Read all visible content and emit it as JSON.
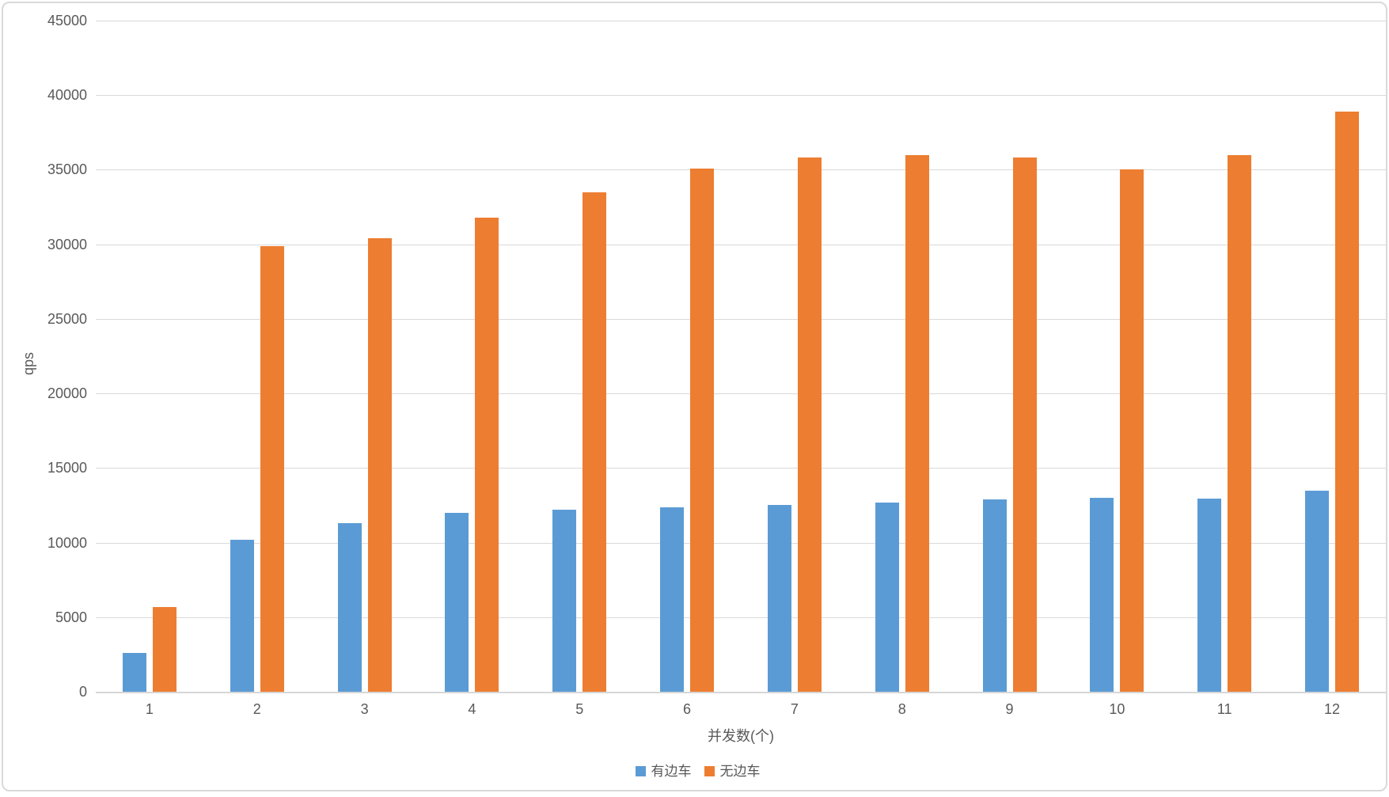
{
  "chart_data": {
    "type": "bar",
    "title": "",
    "categories": [
      "1",
      "2",
      "3",
      "4",
      "5",
      "6",
      "7",
      "8",
      "9",
      "10",
      "11",
      "12"
    ],
    "series": [
      {
        "name": "有边车",
        "color": "#5B9BD5",
        "values": [
          2600,
          10200,
          11300,
          12000,
          12200,
          12350,
          12550,
          12700,
          12900,
          13000,
          12950,
          13500
        ]
      },
      {
        "name": "无边车",
        "color": "#ED7D31",
        "values": [
          5700,
          29900,
          30400,
          31800,
          33500,
          35100,
          35800,
          36000,
          35800,
          35000,
          36000,
          38900
        ]
      }
    ],
    "xlabel": "并发数(个)",
    "ylabel": "qps",
    "ylim": [
      0,
      45000
    ],
    "ytick_step": 5000,
    "yticks": [
      "0",
      "5000",
      "10000",
      "15000",
      "20000",
      "25000",
      "30000",
      "35000",
      "40000",
      "45000"
    ],
    "grid": "horizontal",
    "legend_position": "bottom-center"
  },
  "colors": {
    "gridline": "#d9d9d9",
    "axis_text": "#595959",
    "background": "#ffffff",
    "border": "#d9d9d9"
  }
}
